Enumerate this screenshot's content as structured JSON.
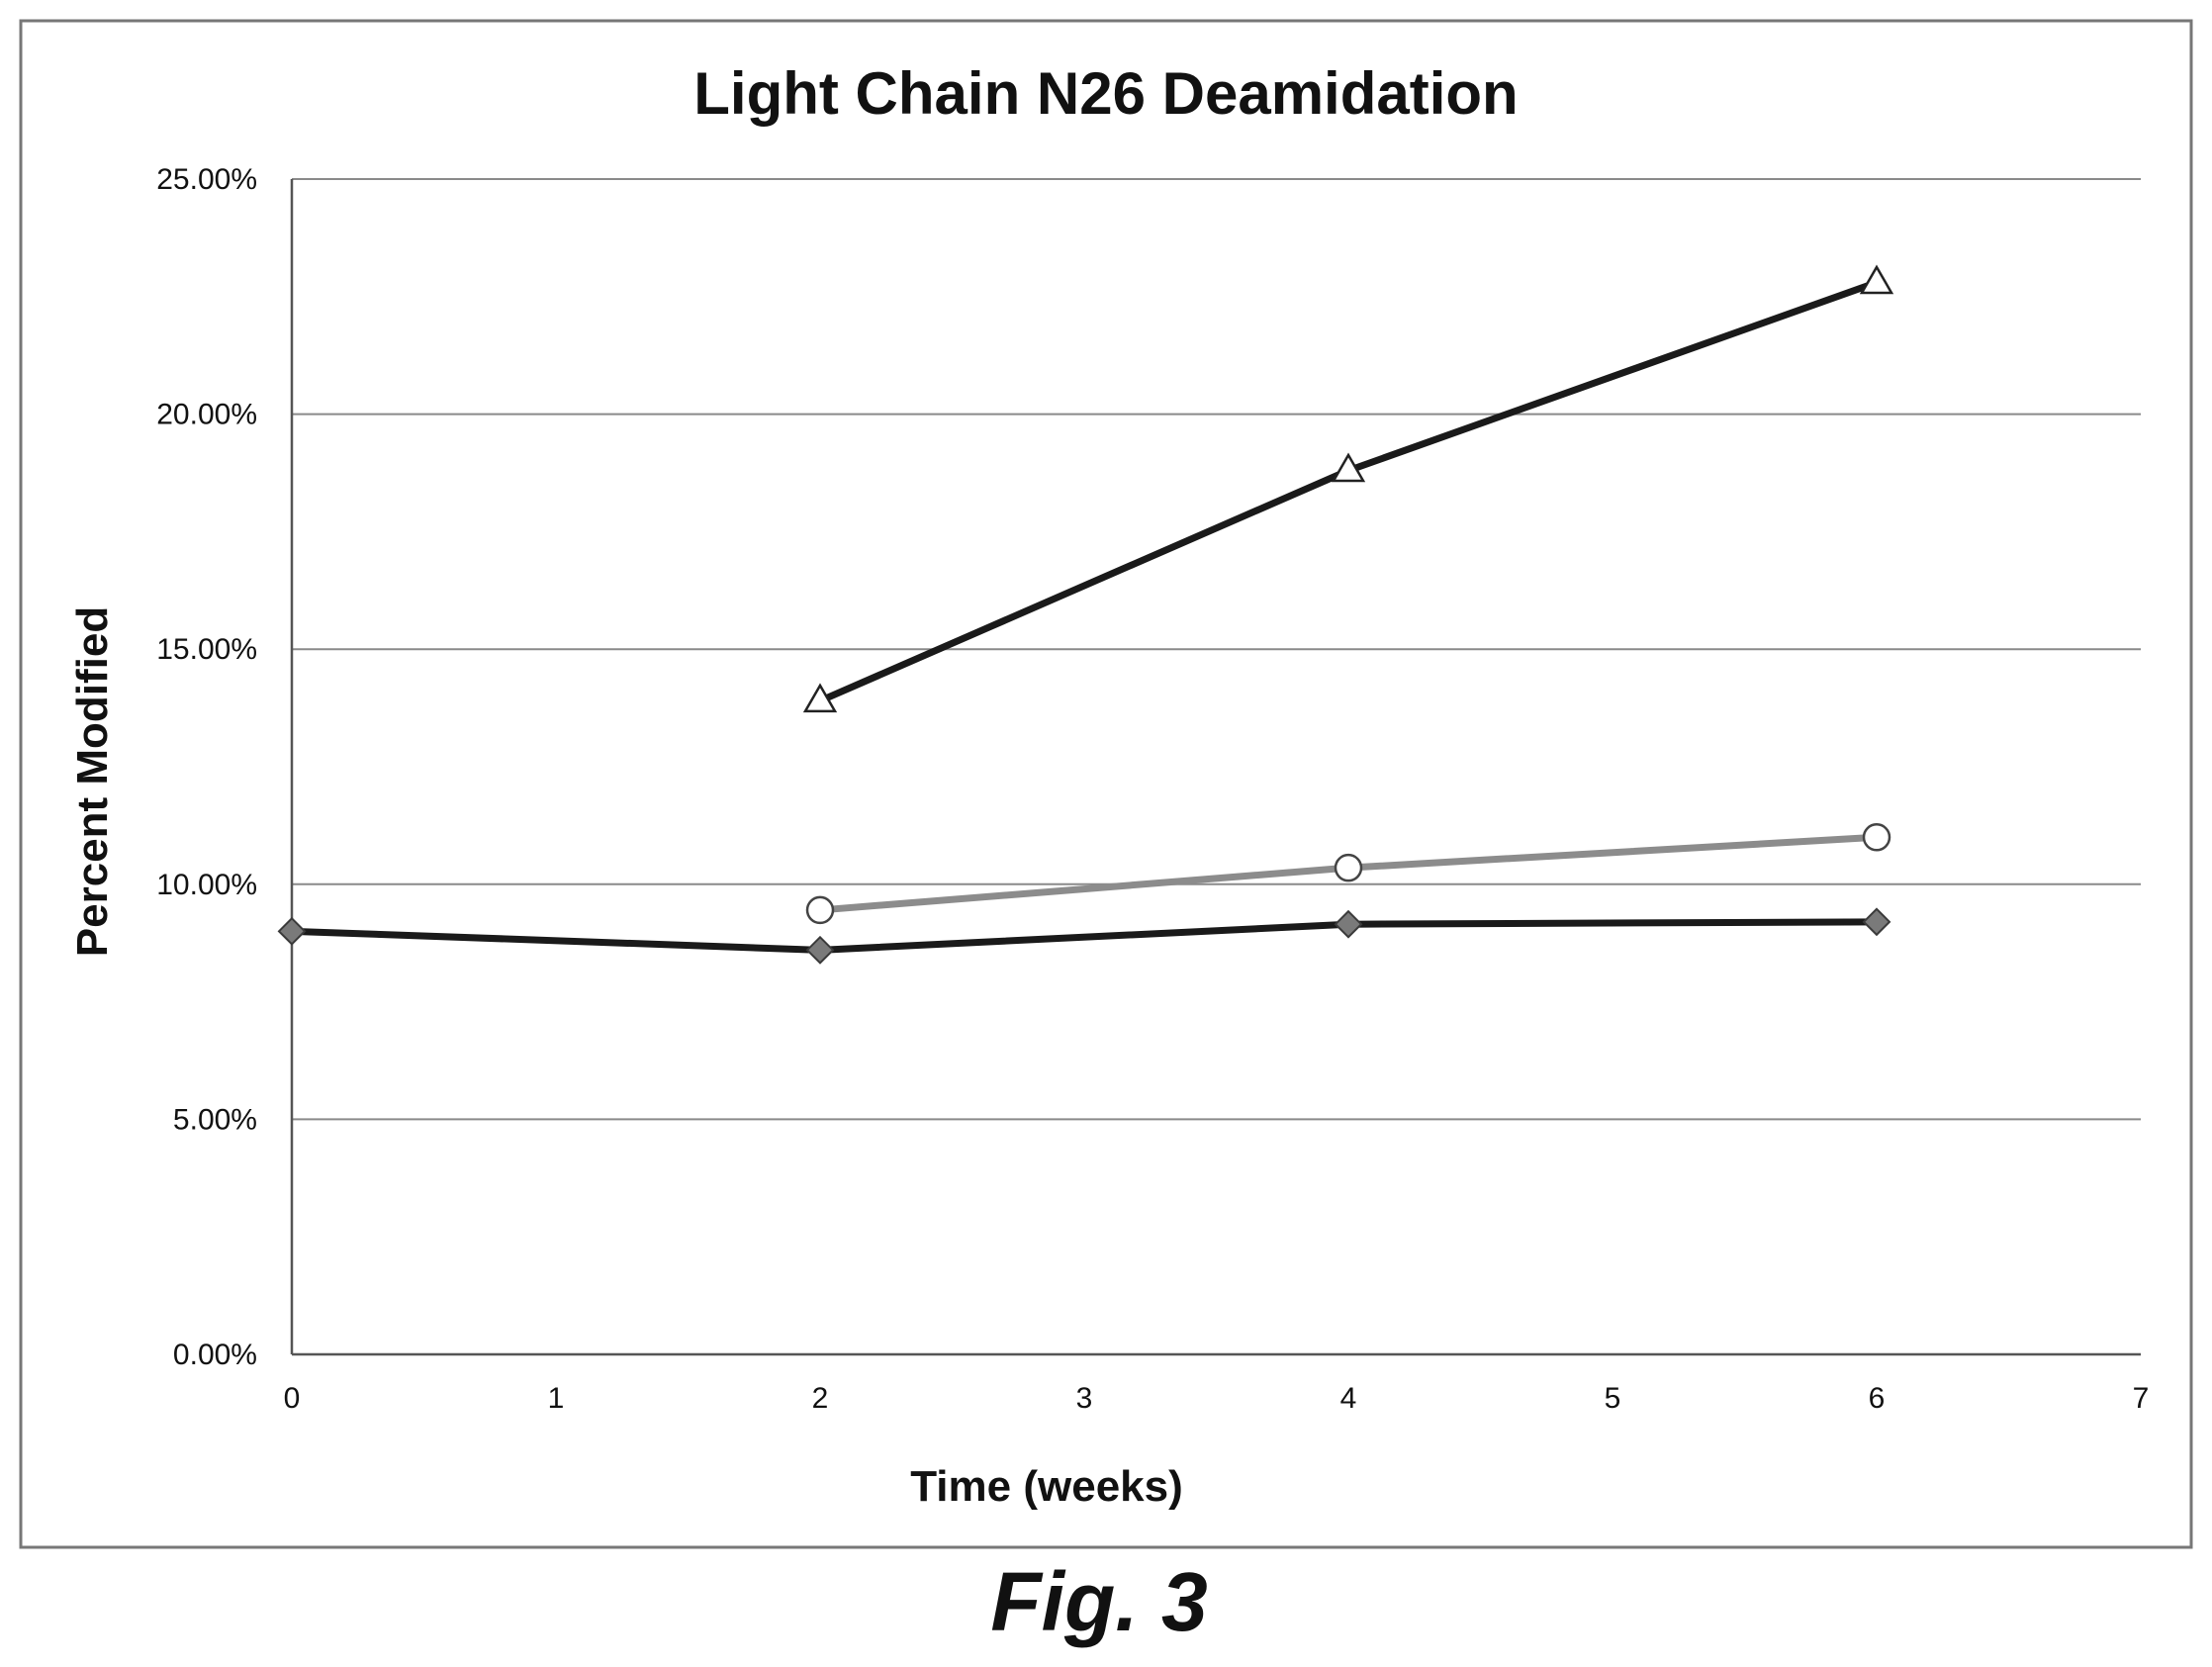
{
  "figure_caption": "Fig. 3",
  "colors": {
    "background": "#ffffff",
    "frame": "#777777",
    "gridline": "#8a8a8a",
    "axis": "#555555",
    "series_dark": "#1a1a1a",
    "series_gray": "#8c8c8c",
    "diamond_fill": "#7a7a7a"
  },
  "chart_data": {
    "type": "line",
    "title": "Light Chain N26 Deamidation",
    "xlabel": "Time (weeks)",
    "ylabel": "Percent Modified",
    "xlim": [
      0,
      7
    ],
    "ylim": [
      0,
      0.25
    ],
    "x_ticks": [
      0,
      1,
      2,
      3,
      4,
      5,
      6,
      7
    ],
    "x_tick_labels": [
      "0",
      "1",
      "2",
      "3",
      "4",
      "5",
      "6",
      "7"
    ],
    "y_ticks": [
      0,
      0.05,
      0.1,
      0.15,
      0.2,
      0.25
    ],
    "y_tick_labels": [
      "0.00%",
      "5.00%",
      "10.00%",
      "15.00%",
      "20.00%",
      "25.00%"
    ],
    "grid": "horizontal",
    "legend": "none",
    "series": [
      {
        "marker": "diamond",
        "line_color": "#1a1a1a",
        "marker_fill": "#7a7a7a",
        "x": [
          0,
          2,
          4,
          6
        ],
        "y": [
          0.09,
          0.086,
          0.0915,
          0.092
        ]
      },
      {
        "marker": "open-circle",
        "line_color": "#8c8c8c",
        "marker_fill": "#ffffff",
        "x": [
          2,
          4,
          6
        ],
        "y": [
          0.0945,
          0.1035,
          0.11
        ]
      },
      {
        "marker": "open-triangle",
        "line_color": "#1a1a1a",
        "marker_fill": "#ffffff",
        "x": [
          2,
          4,
          6
        ],
        "y": [
          0.139,
          0.188,
          0.228
        ]
      }
    ]
  }
}
